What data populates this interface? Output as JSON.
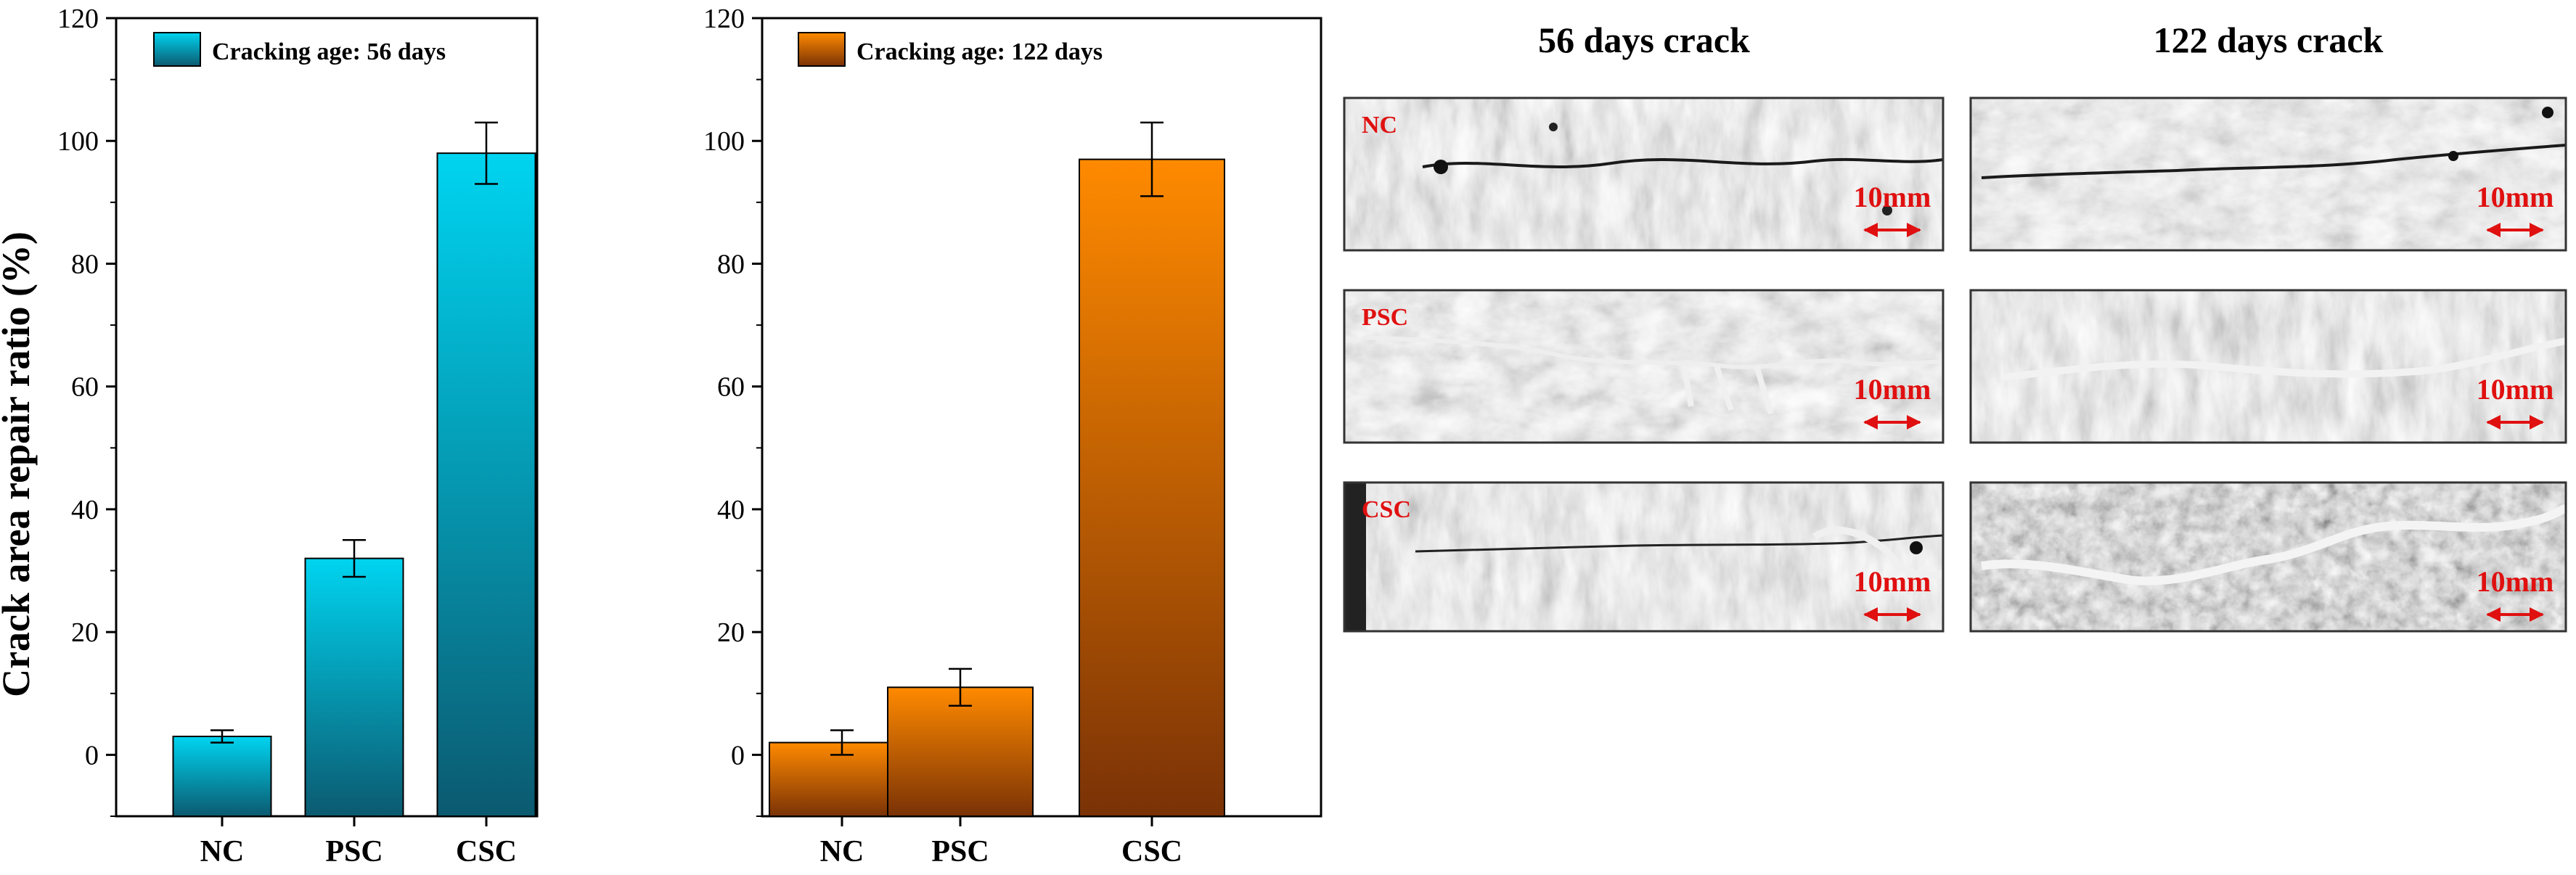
{
  "y_axis_label": "Crack area repair ratio (%)",
  "chart_data": [
    {
      "type": "bar",
      "legend": "Cracking age: 56 days",
      "categories": [
        "NC",
        "PSC",
        "CSC"
      ],
      "values": [
        3,
        32,
        98
      ],
      "error": [
        1,
        3,
        5
      ],
      "ylabel": "Crack area repair ratio (%)",
      "ylim": [
        -10,
        120
      ],
      "yticks": [
        0,
        20,
        40,
        60,
        80,
        100,
        120
      ],
      "ytick_labels": [
        "0",
        "20",
        "40",
        "60",
        "80",
        "100",
        "120"
      ],
      "legend_position": "top-left",
      "grid": false,
      "colors": {
        "top": "#00d4f0",
        "bottom": "#0b5a70"
      }
    },
    {
      "type": "bar",
      "legend": "Cracking age: 122 days",
      "categories": [
        "NC",
        "PSC",
        "CSC"
      ],
      "values": [
        2,
        11,
        97
      ],
      "error": [
        2,
        3,
        6
      ],
      "ylabel": "",
      "ylim": [
        -10,
        120
      ],
      "yticks": [
        0,
        20,
        40,
        60,
        80,
        100,
        120
      ],
      "ytick_labels": [
        "0",
        "20",
        "40",
        "60",
        "80",
        "100",
        "120"
      ],
      "legend_position": "top-left",
      "grid": false,
      "colors": {
        "top": "#ff8a00",
        "bottom": "#7a3206"
      }
    }
  ],
  "photos": {
    "column_titles": [
      "56 days crack",
      "122 days crack"
    ],
    "row_labels": [
      "NC",
      "PSC",
      "CSC"
    ],
    "scale_label": "10mm",
    "label_color": "#e01010"
  }
}
